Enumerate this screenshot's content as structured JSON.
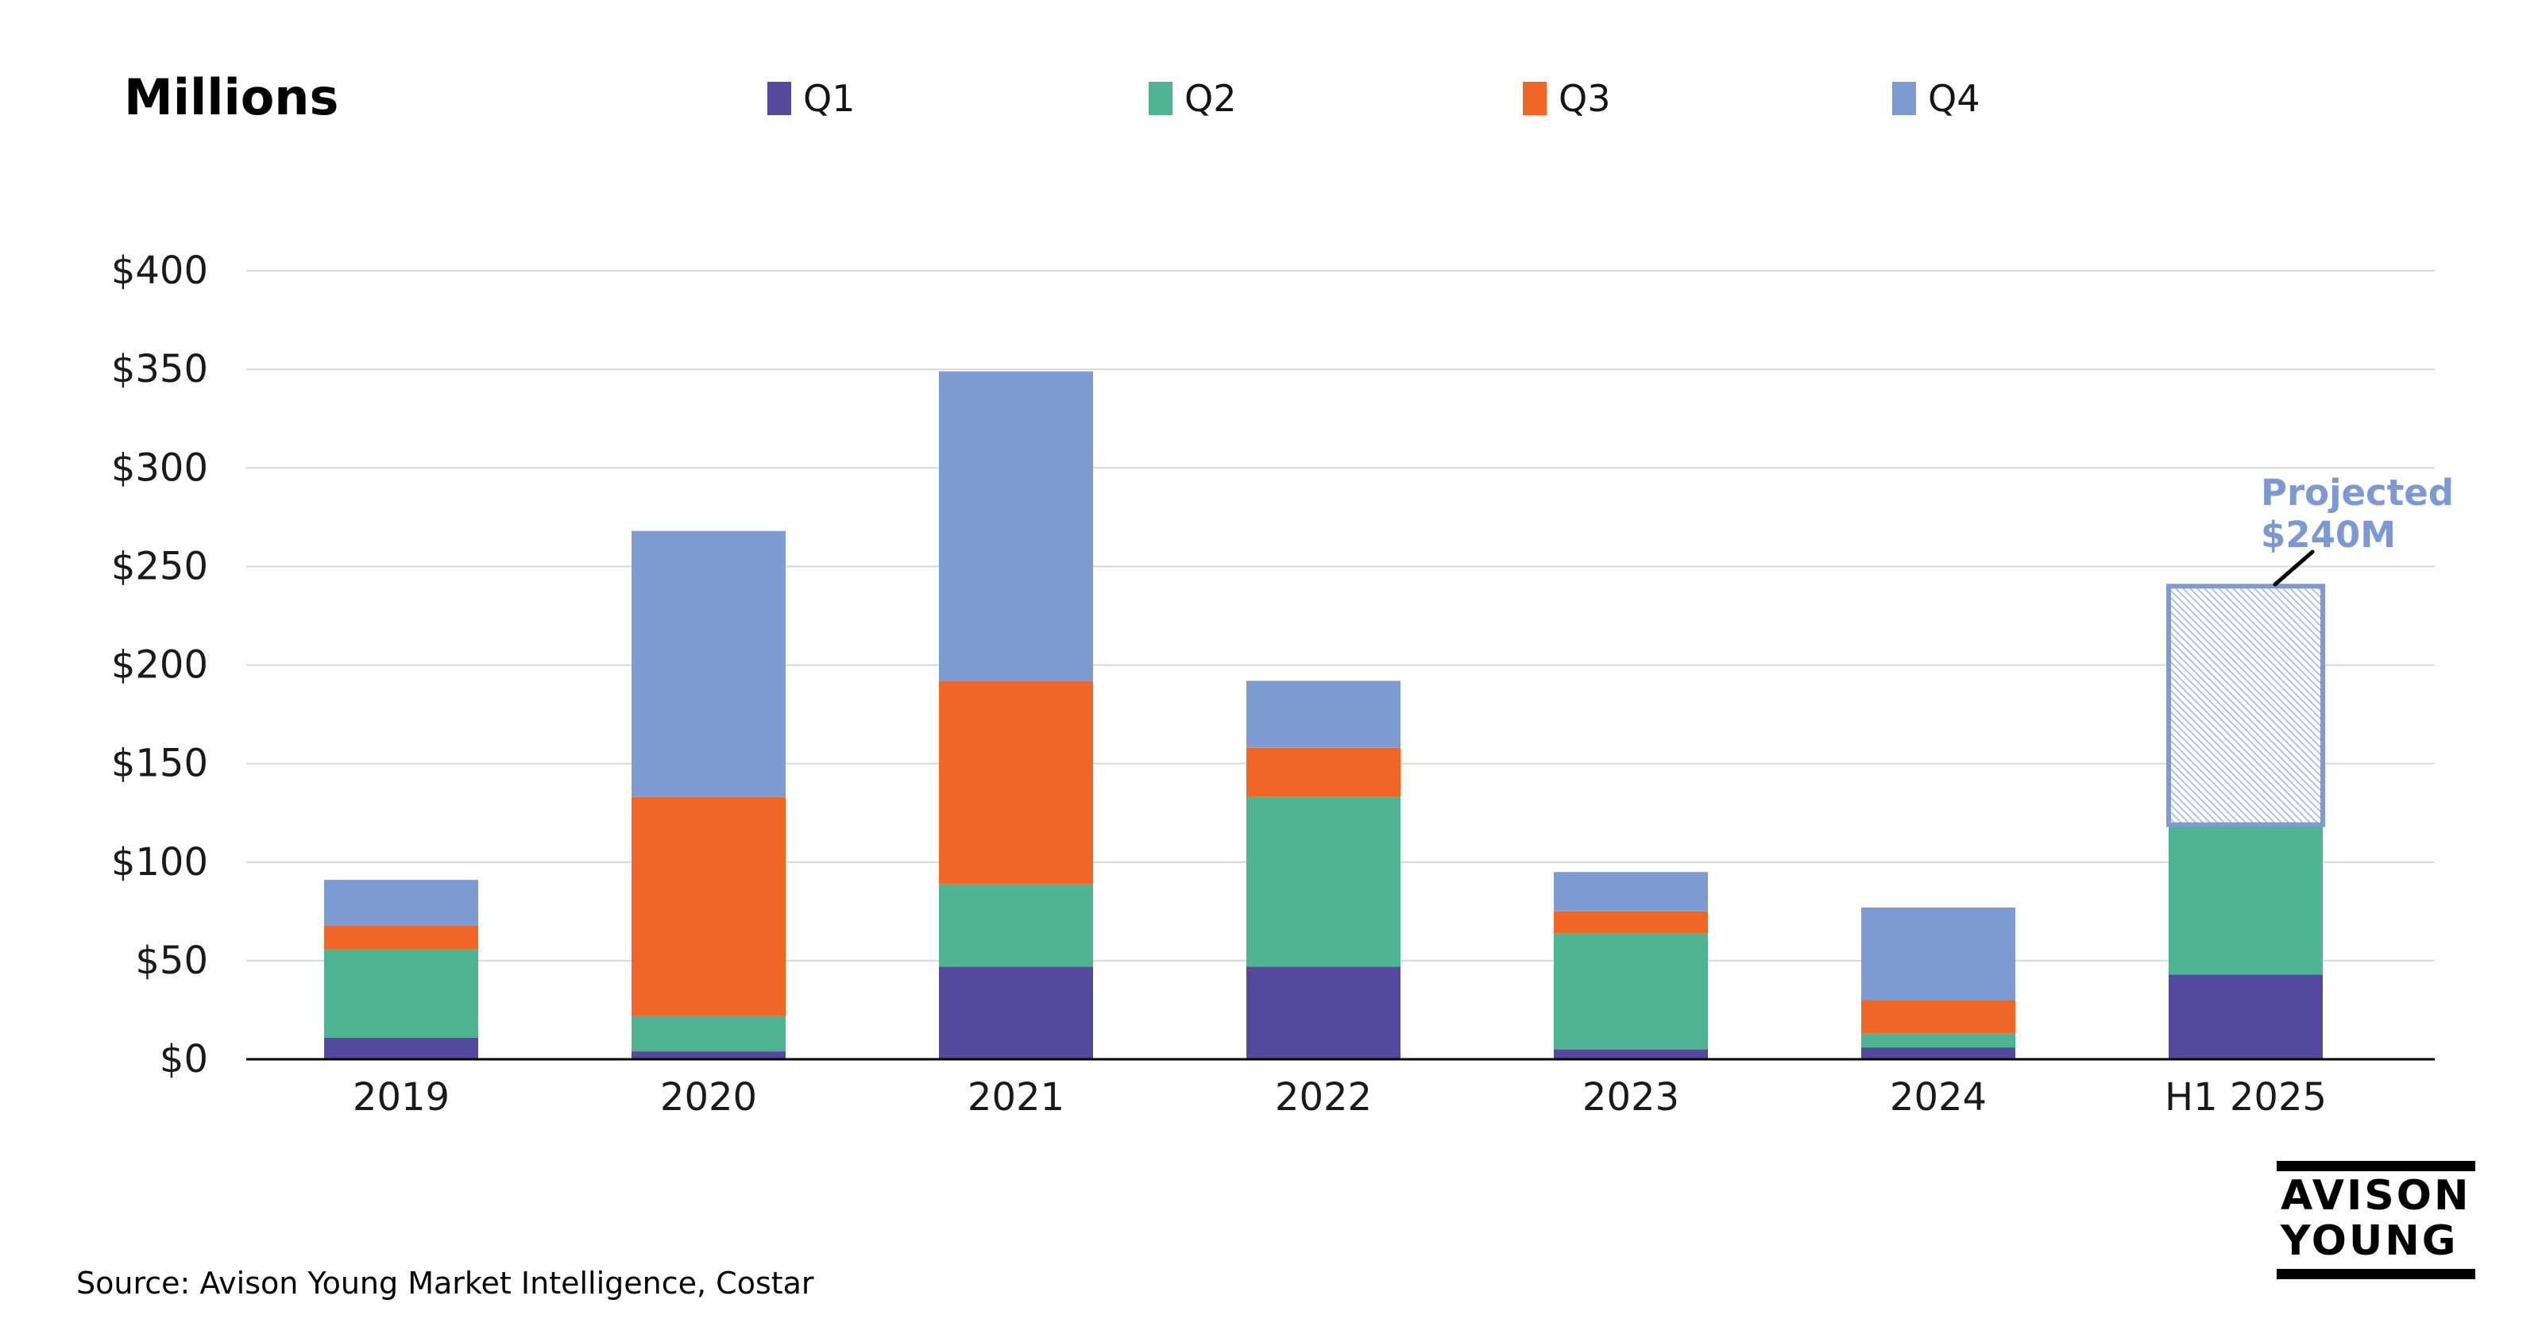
{
  "title": "Millions",
  "legend": [
    {
      "label": "Q1",
      "color": "#55499D"
    },
    {
      "label": "Q2",
      "color": "#4FB492"
    },
    {
      "label": "Q3",
      "color": "#F06626"
    },
    {
      "label": "Q4",
      "color": "#7F9CD2"
    }
  ],
  "annotation": {
    "line1": "Projected",
    "line2": "$240M",
    "color": "#7C99D5"
  },
  "source": "Source: Avison Young Market Intelligence, Costar",
  "logo": {
    "line1": "AVISON",
    "line2": "YOUNG"
  },
  "chart_data": {
    "type": "bar",
    "stacked": true,
    "title": "Millions",
    "categories": [
      "2019",
      "2020",
      "2021",
      "2022",
      "2023",
      "2024",
      "H1 2025"
    ],
    "series": [
      {
        "name": "Q1",
        "color": "#55499D",
        "values": [
          11,
          4,
          47,
          47,
          5,
          6,
          43
        ]
      },
      {
        "name": "Q2",
        "color": "#4FB492",
        "values": [
          45,
          18,
          42,
          86,
          59,
          7,
          76
        ]
      },
      {
        "name": "Q3",
        "color": "#F06626",
        "values": [
          12,
          111,
          103,
          25,
          11,
          17,
          0
        ]
      },
      {
        "name": "Q4",
        "color": "#7F9CD2",
        "values": [
          23,
          135,
          157,
          34,
          20,
          47,
          0
        ]
      }
    ],
    "totals": [
      91,
      268,
      349,
      192,
      95,
      77,
      119
    ],
    "projected": {
      "category": "H1 2025",
      "total": 240,
      "label": "Projected $240M",
      "hatch_border_color": "#7F9CD2",
      "hatch_line_color": "#A9BCE2"
    },
    "ylim": [
      0,
      400
    ],
    "ytick_step": 50,
    "yticks": [
      "$0",
      "$50",
      "$100",
      "$150",
      "$200",
      "$250",
      "$300",
      "$350",
      "$400"
    ],
    "grid": true,
    "gridline_color": "#D9D9D9",
    "axis_color": "#000000",
    "tick_label_color": "#1A1A1A",
    "legend_position": "top"
  }
}
